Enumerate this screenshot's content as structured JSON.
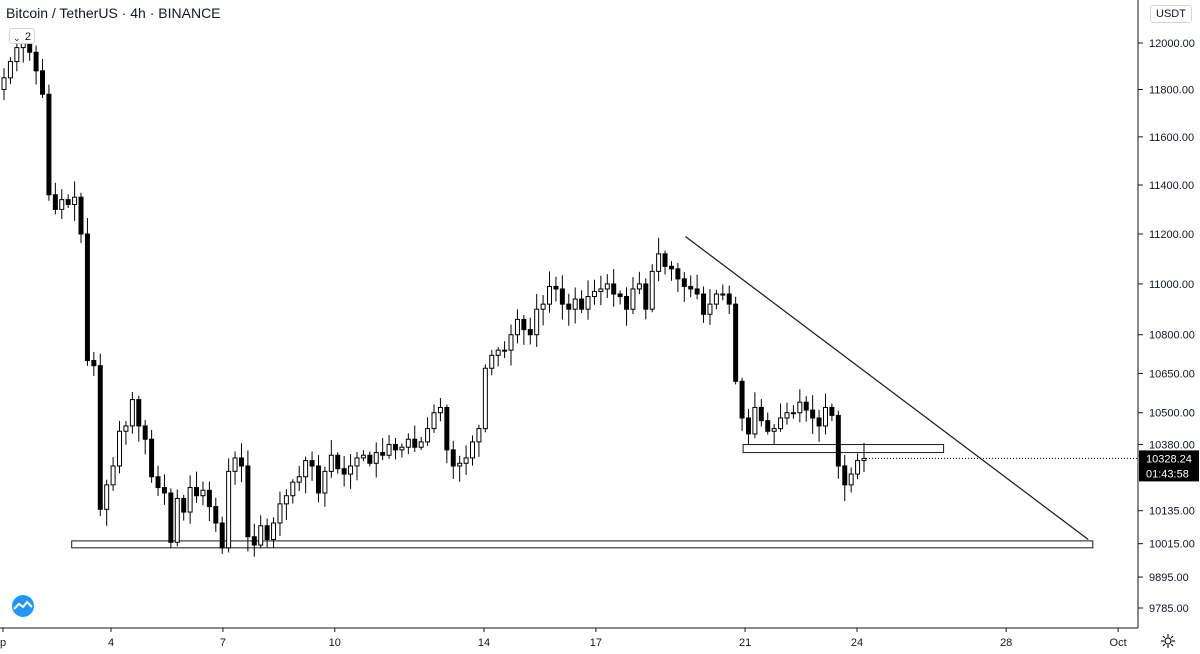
{
  "header": {
    "symbol": "Bitcoin / TetherUS",
    "interval": "4h",
    "exchange": "BINANCE",
    "collapse_count": "2"
  },
  "currency_button": "USDT",
  "colors": {
    "up": "#ffffff",
    "down": "#000000",
    "outline": "#000000",
    "axis_text": "#131722",
    "price_label_bg": "#000000"
  },
  "icons": {
    "collapse": "chevron-down-icon",
    "logo": "tradingview-cloud-icon",
    "settings": "gear-icon"
  },
  "chart_data": {
    "type": "candlestick",
    "y_scale": "log",
    "ylim": [
      9720,
      12090
    ],
    "xlim": [
      "Sep 2",
      "Oct 1"
    ],
    "y_ticks": [
      "12000.00",
      "11800.00",
      "11600.00",
      "11400.00",
      "11200.00",
      "11000.00",
      "10800.00",
      "10650.00",
      "10500.00",
      "10380.00",
      "10135.00",
      "10015.00",
      "9895.00",
      "9785.00"
    ],
    "x_ticks": [
      {
        "label": "p",
        "day": 1
      },
      {
        "label": "4",
        "day": 4
      },
      {
        "label": "7",
        "day": 7
      },
      {
        "label": "10",
        "day": 10
      },
      {
        "label": "14",
        "day": 14
      },
      {
        "label": "17",
        "day": 17
      },
      {
        "label": "21",
        "day": 21
      },
      {
        "label": "24",
        "day": 24
      },
      {
        "label": "28",
        "day": 28
      },
      {
        "label": "Oct",
        "day": 31
      }
    ],
    "last_price": "10328.24",
    "countdown": "01:43:58",
    "closes": [
      11850,
      11920,
      11980,
      12010,
      11960,
      11880,
      11780,
      11360,
      11300,
      11340,
      11320,
      11350,
      11200,
      10700,
      10680,
      10140,
      10230,
      10300,
      10430,
      10450,
      10550,
      10450,
      10400,
      10260,
      10220,
      10200,
      10020,
      10180,
      10130,
      10220,
      10190,
      10210,
      10150,
      10090,
      10000,
      10280,
      10330,
      10300,
      10040,
      10010,
      10080,
      10030,
      10090,
      10160,
      10190,
      10240,
      10260,
      10320,
      10300,
      10200,
      10280,
      10340,
      10290,
      10270,
      10300,
      10330,
      10340,
      10310,
      10350,
      10340,
      10380,
      10360,
      10370,
      10400,
      10370,
      10390,
      10440,
      10500,
      10520,
      10360,
      10300,
      10310,
      10330,
      10390,
      10440,
      10670,
      10720,
      10740,
      10740,
      10800,
      10860,
      10820,
      10800,
      10900,
      10920,
      10990,
      10980,
      10920,
      10900,
      10940,
      10900,
      10950,
      10970,
      10980,
      11000,
      10960,
      10950,
      10900,
      10980,
      11000,
      10900,
      11050,
      11120,
      11070,
      11060,
      11020,
      10990,
      10980,
      10960,
      10880,
      10920,
      10960,
      10960,
      10920,
      10620,
      10480,
      10420,
      10520,
      10470,
      10430,
      10440,
      10480,
      10500,
      10500,
      10540,
      10510,
      10480,
      10450,
      10520,
      10490,
      10300,
      10230,
      10270,
      10320,
      10328.24
    ],
    "support_zones": [
      {
        "from": 10000,
        "to": 10025,
        "x_start": "Sep 3",
        "x_end": "Sep 30"
      },
      {
        "from": 10350,
        "to": 10380,
        "x_start": "Sep 21",
        "x_end": "Sep 26"
      }
    ],
    "trendline": [
      {
        "day": 19.4,
        "price": 11190
      },
      {
        "day": 30.2,
        "price": 10030
      }
    ]
  }
}
